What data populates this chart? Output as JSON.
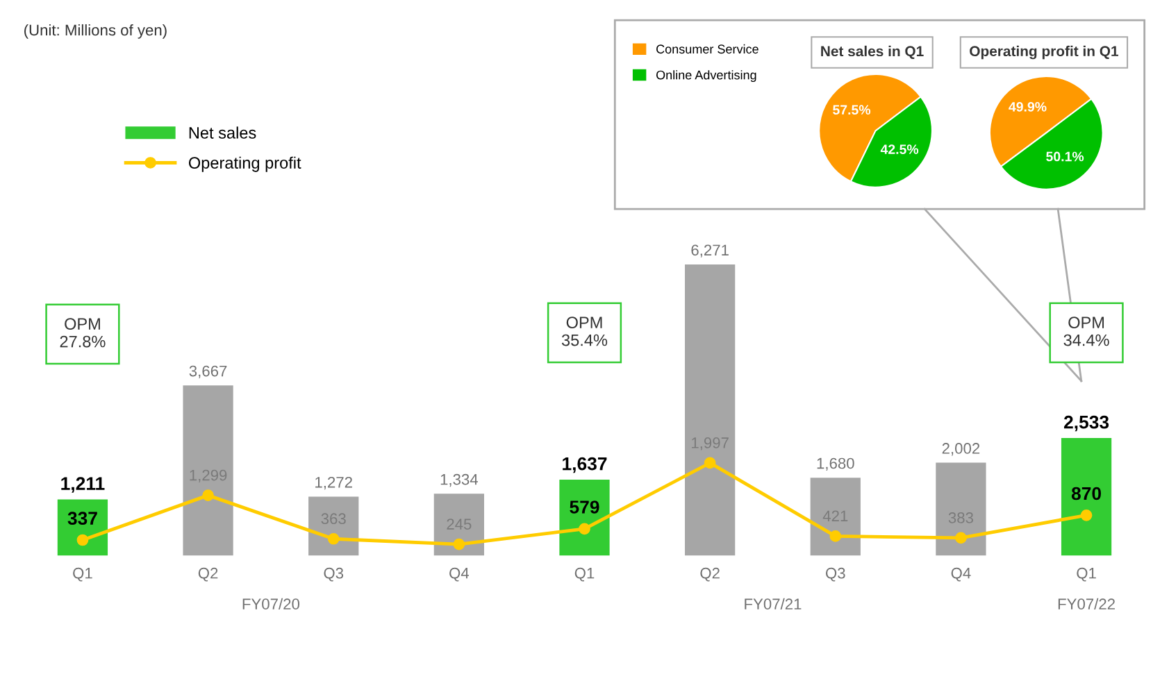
{
  "chart_data": [
    {
      "type": "bar",
      "categories": [
        "Q1",
        "Q2",
        "Q3",
        "Q4",
        "Q1",
        "Q2",
        "Q3",
        "Q4",
        "Q1"
      ],
      "series": [
        {
          "name": "Net sales",
          "type": "bar",
          "color": "#33cc33",
          "colors": [
            "#33cc33",
            "#a6a6a6",
            "#a6a6a6",
            "#a6a6a6",
            "#33cc33",
            "#a6a6a6",
            "#a6a6a6",
            "#a6a6a6",
            "#33cc33"
          ],
          "values": [
            1211,
            3667,
            1272,
            1334,
            1637,
            6271,
            1680,
            2002,
            2533
          ],
          "value_labels": [
            "1,211",
            "3,667",
            "1,272",
            "1,334",
            "1,637",
            "6,271",
            "1,680",
            "2,002",
            "2,533"
          ]
        },
        {
          "name": "Operating profit",
          "type": "line",
          "color": "#ffcc00",
          "marker": "circle",
          "values": [
            337,
            1299,
            363,
            245,
            579,
            1997,
            421,
            383,
            870
          ],
          "value_labels": [
            "337",
            "1,299",
            "363",
            "245",
            "579",
            "1,997",
            "421",
            "383",
            "870"
          ]
        }
      ],
      "legend": "top left",
      "grid": false,
      "annotations": [
        "(Unit: Millions of yen)",
        "OPM\n27.8%",
        "OPM\n35.4%",
        "OPM\n34.4%",
        "FY07/20",
        "FY07/21",
        "FY07/22"
      ]
    },
    {
      "type": "pie",
      "title": "Net sales in Q1",
      "categories": [
        "Consumer Service",
        "Online Advertising"
      ],
      "values": [
        57.5,
        42.5
      ],
      "value_labels": [
        "57.5%",
        "42.5%"
      ],
      "colors": [
        "#ff9900",
        "#00c000"
      ],
      "legend": "left"
    },
    {
      "type": "pie",
      "title": "Operating profit in Q1",
      "values": [
        49.9,
        50.1
      ],
      "value_labels": [
        "49.9%",
        "50.1%"
      ],
      "colors": [
        "#ff9900",
        "#00c000"
      ]
    }
  ]
}
